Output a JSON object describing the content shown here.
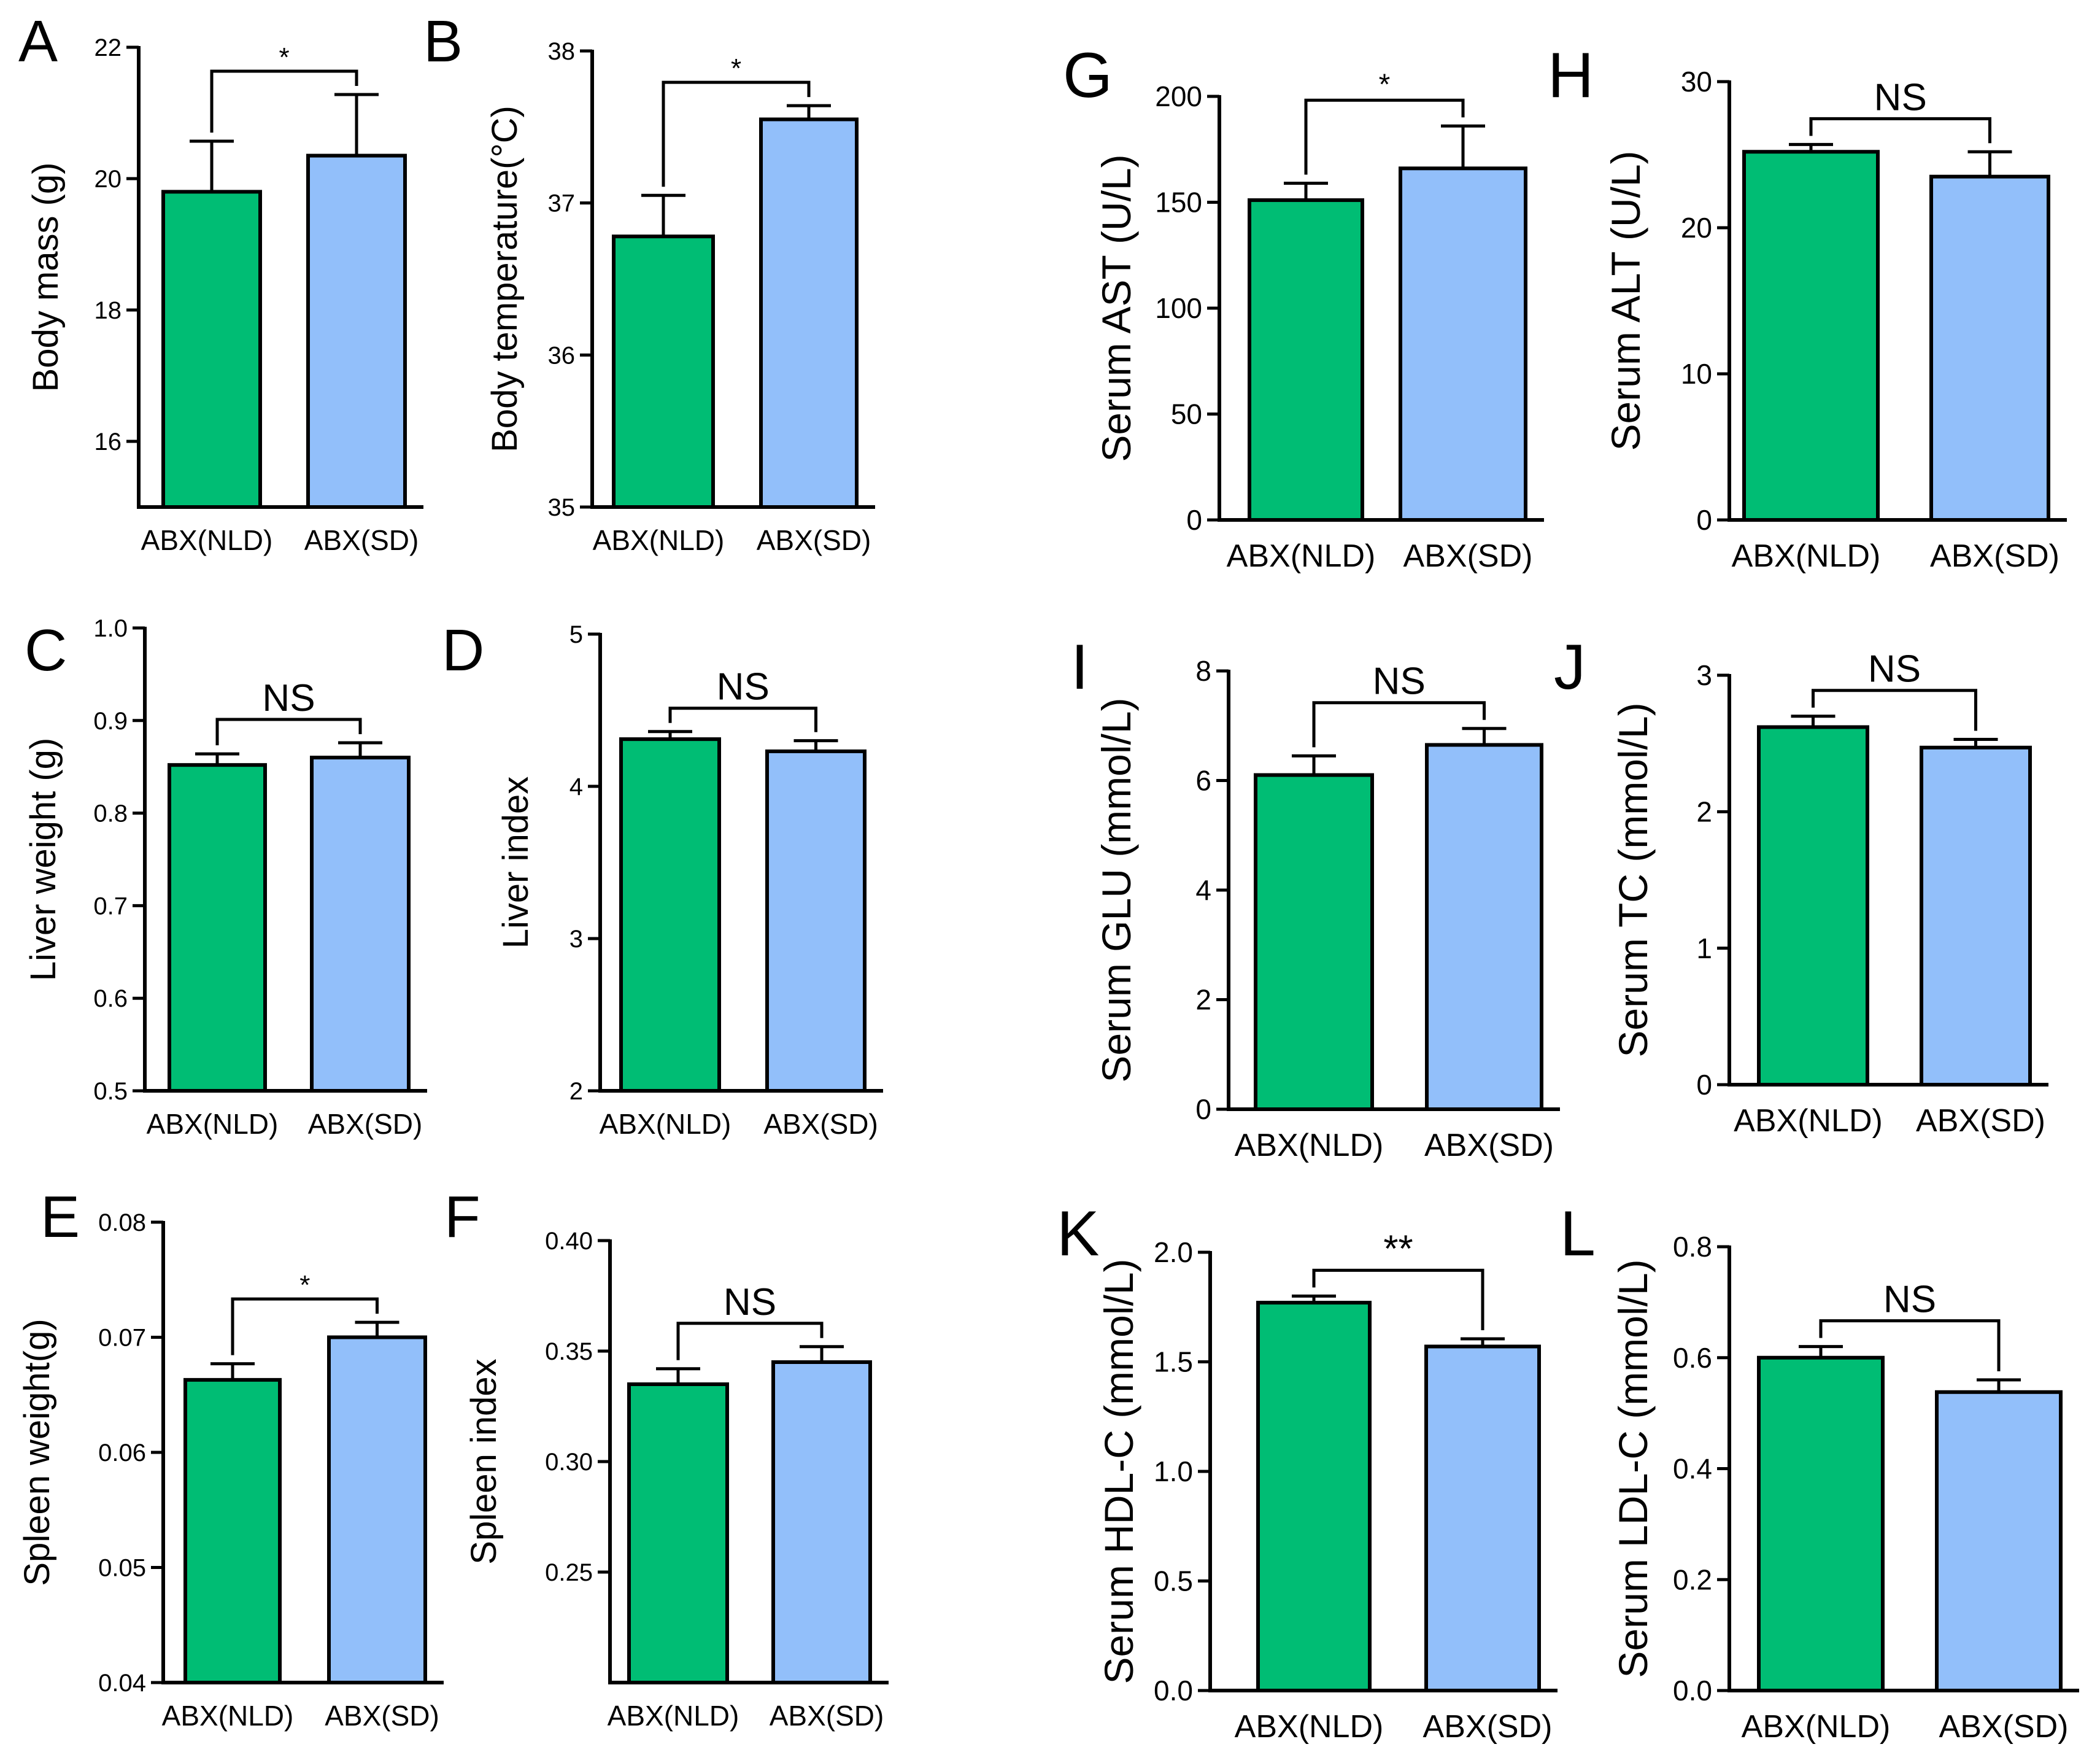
{
  "figure": {
    "colors": {
      "nld": "#00BD74",
      "sd": "#92BFFA",
      "stroke": "#000000"
    }
  },
  "chart_data": [
    {
      "letter": "A",
      "type": "bar",
      "categories": [
        "ABX(NLD)",
        "ABX(SD)"
      ],
      "values": [
        19.8,
        20.35
      ],
      "errors": [
        0.77,
        0.93
      ],
      "ylabel": "Body mass (g)",
      "ylim": [
        15,
        22
      ],
      "yticks": [
        16,
        18,
        20,
        22
      ],
      "ytick_labels": [
        "16",
        "18",
        "20",
        "22"
      ],
      "sig": "*"
    },
    {
      "letter": "B",
      "type": "bar",
      "categories": [
        "ABX(NLD)",
        "ABX(SD)"
      ],
      "values": [
        36.78,
        37.55
      ],
      "errors": [
        0.27,
        0.09
      ],
      "ylabel": "Body temperature(°C)",
      "ylim": [
        35,
        38
      ],
      "yticks": [
        35,
        36,
        37,
        38
      ],
      "ytick_labels": [
        "35",
        "36",
        "37",
        "38"
      ],
      "sig": "*"
    },
    {
      "letter": "C",
      "type": "bar",
      "categories": [
        "ABX(NLD)",
        "ABX(SD)"
      ],
      "values": [
        0.852,
        0.86
      ],
      "errors": [
        0.012,
        0.016
      ],
      "ylabel": "Liver weight (g)",
      "ylim": [
        0.5,
        1.0
      ],
      "yticks": [
        0.5,
        0.6,
        0.7,
        0.8,
        0.9,
        1.0
      ],
      "ytick_labels": [
        "0.5",
        "0.6",
        "0.7",
        "0.8",
        "0.9",
        "1.0"
      ],
      "sig": "NS"
    },
    {
      "letter": "D",
      "type": "bar",
      "categories": [
        "ABX(NLD)",
        "ABX(SD)"
      ],
      "values": [
        4.31,
        4.23
      ],
      "errors": [
        0.05,
        0.07
      ],
      "ylabel": "Liver index",
      "ylim": [
        2,
        5
      ],
      "yticks": [
        2,
        3,
        4,
        5
      ],
      "ytick_labels": [
        "2",
        "3",
        "4",
        "5"
      ],
      "sig": "NS"
    },
    {
      "letter": "E",
      "type": "bar",
      "categories": [
        "ABX(NLD)",
        "ABX(SD)"
      ],
      "values": [
        0.0663,
        0.07
      ],
      "errors": [
        0.0014,
        0.0013
      ],
      "ylabel": "Spleen weight(g)",
      "ylim": [
        0.04,
        0.08
      ],
      "yticks": [
        0.04,
        0.05,
        0.06,
        0.07,
        0.08
      ],
      "ytick_labels": [
        "0.04",
        "0.05",
        "0.06",
        "0.07",
        "0.08"
      ],
      "sig": "*"
    },
    {
      "letter": "F",
      "type": "bar",
      "categories": [
        "ABX(NLD)",
        "ABX(SD)"
      ],
      "values": [
        0.335,
        0.345
      ],
      "errors": [
        0.007,
        0.007
      ],
      "ylabel": "Spleen index",
      "ylim": [
        0.2,
        0.4
      ],
      "yticks": [
        0.25,
        0.3,
        0.35,
        0.4
      ],
      "ytick_labels": [
        "0.25",
        "0.30",
        "0.35",
        "0.40"
      ],
      "sig": "NS"
    },
    {
      "letter": "G",
      "type": "bar",
      "categories": [
        "ABX(NLD)",
        "ABX(SD)"
      ],
      "values": [
        151,
        166
      ],
      "errors": [
        8,
        20
      ],
      "ylabel": "Serum AST (U/L)",
      "ylim": [
        0,
        200
      ],
      "yticks": [
        0,
        50,
        100,
        150,
        200
      ],
      "ytick_labels": [
        "0",
        "50",
        "100",
        "150",
        "200"
      ],
      "sig": "*"
    },
    {
      "letter": "H",
      "type": "bar",
      "categories": [
        "ABX(NLD)",
        "ABX(SD)"
      ],
      "values": [
        25.2,
        23.5
      ],
      "errors": [
        0.5,
        1.7
      ],
      "ylabel": "Serum ALT (U/L)",
      "ylim": [
        0,
        30
      ],
      "yticks": [
        0,
        10,
        20,
        30
      ],
      "ytick_labels": [
        "0",
        "10",
        "20",
        "30"
      ],
      "sig": "NS"
    },
    {
      "letter": "I",
      "type": "bar",
      "categories": [
        "ABX(NLD)",
        "ABX(SD)"
      ],
      "values": [
        6.1,
        6.65
      ],
      "errors": [
        0.35,
        0.3
      ],
      "ylabel": "Serum GLU (mmol/L)",
      "ylim": [
        0,
        8
      ],
      "yticks": [
        0,
        2,
        4,
        6,
        8
      ],
      "ytick_labels": [
        "0",
        "2",
        "4",
        "6",
        "8"
      ],
      "sig": "NS"
    },
    {
      "letter": "J",
      "type": "bar",
      "categories": [
        "ABX(NLD)",
        "ABX(SD)"
      ],
      "values": [
        2.62,
        2.47
      ],
      "errors": [
        0.08,
        0.06
      ],
      "ylabel": "Serum TC (mmol/L)",
      "ylim": [
        0,
        3
      ],
      "yticks": [
        0,
        1,
        2,
        3
      ],
      "ytick_labels": [
        "0",
        "1",
        "2",
        "3"
      ],
      "sig": "NS"
    },
    {
      "letter": "K",
      "type": "bar",
      "categories": [
        "ABX(NLD)",
        "ABX(SD)"
      ],
      "values": [
        1.77,
        1.57
      ],
      "errors": [
        0.03,
        0.035
      ],
      "ylabel": "Serum HDL-C (mmol/L)",
      "ylim": [
        0,
        2
      ],
      "yticks": [
        0,
        0.5,
        1,
        1.5,
        2
      ],
      "ytick_labels": [
        "0.0",
        "0.5",
        "1.0",
        "1.5",
        "2.0"
      ],
      "sig": "**"
    },
    {
      "letter": "L",
      "type": "bar",
      "categories": [
        "ABX(NLD)",
        "ABX(SD)"
      ],
      "values": [
        0.6,
        0.538
      ],
      "errors": [
        0.02,
        0.022
      ],
      "ylabel": "Serum LDL-C (mmol/L)",
      "ylim": [
        0,
        0.8
      ],
      "yticks": [
        0,
        0.2,
        0.4,
        0.6,
        0.8
      ],
      "ytick_labels": [
        "0.0",
        "0.2",
        "0.4",
        "0.6",
        "0.8"
      ],
      "sig": "NS"
    }
  ]
}
